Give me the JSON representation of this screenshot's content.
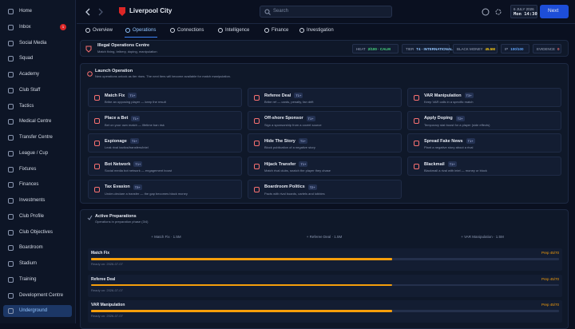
{
  "sidebar": {
    "items": [
      "Home",
      "Inbox",
      "Social Media",
      "Squad",
      "Academy",
      "Club Staff",
      "Tactics",
      "Medical Centre",
      "Transfer Centre",
      "League / Cup",
      "Fixtures",
      "Finances",
      "Investments",
      "Club Profile",
      "Club Objectives",
      "Boardroom",
      "Stadium",
      "Training",
      "Development Centre",
      "Underground"
    ],
    "active": 19,
    "inbox_badge": 1
  },
  "topbar": {
    "club": "Liverpool City",
    "search": "Search",
    "date": "6 JULY 2026",
    "time": "Mon 14:30",
    "next": "Next"
  },
  "tabs": {
    "items": [
      "Overview",
      "Operations",
      "Connections",
      "Intelligence",
      "Finance",
      "Investigation"
    ],
    "active": 1
  },
  "header": {
    "title": "Illegal Operations Centre",
    "subtitle": "Match fixing, bribery, doping, manipulation",
    "stats": [
      {
        "label": "HEAT",
        "value": "2/100 · CALM",
        "color": "#4ade80"
      },
      {
        "label": "TIER",
        "value": "T4 · INTERNATIONAL",
        "color": "#93c5fd"
      },
      {
        "label": "BLACK MONEY",
        "value": "45.5M",
        "color": "#facc15"
      },
      {
        "label": "IP",
        "value": "100/100",
        "color": "#60a5fa"
      },
      {
        "label": "EVIDENCE",
        "value": "0",
        "color": "#f87171"
      }
    ]
  },
  "launch": {
    "title": "Launch Operation",
    "subtitle": "New operations unlock as tier rises. The next tiers will become available for match manipulation.",
    "operations": [
      {
        "name": "Match Fix",
        "tier": "T1+",
        "desc": "Bribe an opposing player — keep the result"
      },
      {
        "name": "Referee Deal",
        "tier": "T1+",
        "desc": "Bribe ref — cards, penalty, fan drift"
      },
      {
        "name": "VAR Manipulation",
        "tier": "T3+",
        "desc": "Keep VAR calls in a specific match"
      },
      {
        "name": "Place a Bet",
        "tier": "T1+",
        "desc": "Bet on your own match — lifetime ban risk"
      },
      {
        "name": "Off-shore Sponsor",
        "tier": "T1+",
        "desc": "Sign a sponsorship from a covert source"
      },
      {
        "name": "Apply Doping",
        "tier": "T2+",
        "desc": "Temporary stat boost for a player (side effects)"
      },
      {
        "name": "Espionage",
        "tier": "T1+",
        "desc": "Leak rival tactics/transfers/intel"
      },
      {
        "name": "Hide The Story",
        "tier": "T1+",
        "desc": "Block publication of a negative story"
      },
      {
        "name": "Spread Fake News",
        "tier": "T1+",
        "desc": "Plant a negative story about a rival"
      },
      {
        "name": "Bot Network",
        "tier": "T1+",
        "desc": "Social media bot network — engagement boost"
      },
      {
        "name": "Hijack Transfer",
        "tier": "T1+",
        "desc": "Match rival clubs, snatch the player they chase"
      },
      {
        "name": "Blackmail",
        "tier": "T1+",
        "desc": "Blackmail a rival with intel — money or block"
      },
      {
        "name": "Tax Evasion",
        "tier": "T3+",
        "desc": "Under-declare a transfer — the gap becomes black money"
      },
      {
        "name": "Boardroom Politics",
        "tier": "T2+",
        "desc": "Pacts with rival boards, cartels and lobbies"
      }
    ]
  },
  "preparations": {
    "title": "Active Preparations",
    "subtitle": "Operations in preparation phase (3/4)",
    "slots": [
      "+ Match Fix · 1.5M",
      "+ Referee Deal · 1.5M",
      "+ VAR Manipulation · 1.5M"
    ],
    "items": [
      {
        "name": "Match Fix",
        "ready": "Ready on: 2026-07-07",
        "progress": {
          "label": "Prep 45/70",
          "value": 45,
          "max": 70
        }
      },
      {
        "name": "Referee Deal",
        "ready": "Ready on: 2026-07-07",
        "progress": {
          "label": "Prep 45/70",
          "value": 45,
          "max": 70
        }
      },
      {
        "name": "VAR Manipulation",
        "ready": "Ready on: 2026-07-07",
        "progress": {
          "label": "Prep 45/70",
          "value": 45,
          "max": 70
        }
      }
    ]
  }
}
